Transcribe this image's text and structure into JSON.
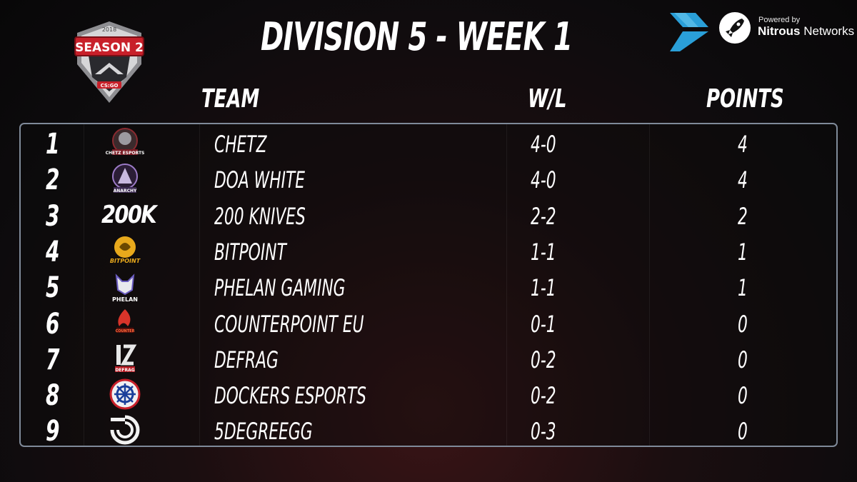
{
  "header": {
    "title": "DIVISION 5 - WEEK 1",
    "season_logo": {
      "year": "2018",
      "label": "SEASON 2",
      "game": "CS:GO",
      "icon": "season-crest-icon"
    },
    "sponsor_left_icon": "speed-chevron-icon",
    "sponsor": {
      "powered_by": "Powered by",
      "name_bold": "Nitrous",
      "name_rest": " Networks",
      "icon": "rocket-badge-icon"
    }
  },
  "columns": {
    "team": "TEAM",
    "wl": "W/L",
    "points": "POINTS"
  },
  "rows": [
    {
      "rank": "1",
      "name": "CHETZ",
      "wl": "4-0",
      "points": "4",
      "logo": {
        "icon": "chetz-esports-logo-icon",
        "text": "CHETZ ESPORTS"
      }
    },
    {
      "rank": "2",
      "name": "DOA WHITE",
      "wl": "4-0",
      "points": "4",
      "logo": {
        "icon": "anarchy-logo-icon",
        "text": "ANARCHY"
      }
    },
    {
      "rank": "3",
      "name": "200 KNIVES",
      "wl": "2-2",
      "points": "2",
      "logo": {
        "icon": "200k-logo-icon",
        "text": "200K"
      }
    },
    {
      "rank": "4",
      "name": "BITPOINT",
      "wl": "1-1",
      "points": "1",
      "logo": {
        "icon": "bitpoint-logo-icon",
        "text": "BITPOINT"
      }
    },
    {
      "rank": "5",
      "name": "PHELAN GAMING",
      "wl": "1-1",
      "points": "1",
      "logo": {
        "icon": "phelan-wolf-logo-icon",
        "text": "PHELAN"
      }
    },
    {
      "rank": "6",
      "name": "COUNTERPOINT EU",
      "wl": "0-1",
      "points": "0",
      "logo": {
        "icon": "counterpoint-logo-icon",
        "text": "COUNTER"
      }
    },
    {
      "rank": "7",
      "name": "DEFRAG",
      "wl": "0-2",
      "points": "0",
      "logo": {
        "icon": "defrag-logo-icon",
        "text": "DEFRAG"
      }
    },
    {
      "rank": "8",
      "name": "DOCKERS ESPORTS",
      "wl": "0-2",
      "points": "0",
      "logo": {
        "icon": "ship-wheel-logo-icon"
      }
    },
    {
      "rank": "9",
      "name": "5DEGREEGG",
      "wl": "0-3",
      "points": "0",
      "logo": {
        "icon": "5degree-logo-icon"
      }
    }
  ],
  "colors": {
    "accent_red": "#c8202a",
    "panel_border": "#7f8a99",
    "sponsor_blue": "#2a9fd8",
    "bitpoint_gold": "#e8a91c"
  }
}
